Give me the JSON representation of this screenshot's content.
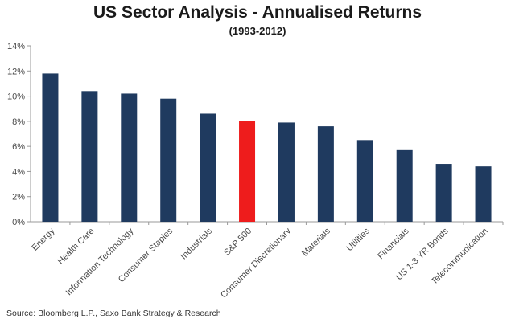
{
  "chart_data": {
    "type": "bar",
    "title": "US Sector Analysis - Annualised Returns",
    "subtitle": "(1993-2012)",
    "categories": [
      "Energy",
      "Health Care",
      "Information Technology",
      "Consumer Staples",
      "Industrials",
      "S&P 500",
      "Consumer Discretionary",
      "Materials",
      "Utilities",
      "Financials",
      "US 1-3 YR Bonds",
      "Telecommunication"
    ],
    "values": [
      11.8,
      10.4,
      10.2,
      9.8,
      8.6,
      8.0,
      7.9,
      7.6,
      6.5,
      5.7,
      4.6,
      4.4
    ],
    "highlight_category": "S&P 500",
    "ylim": [
      0,
      14
    ],
    "yticks": [
      0,
      2,
      4,
      6,
      8,
      10,
      12,
      14
    ],
    "ytick_labels": [
      "0%",
      "2%",
      "4%",
      "6%",
      "8%",
      "10%",
      "12%",
      "14%"
    ],
    "xlabel": "",
    "ylabel": "",
    "grid": false,
    "legend": "none",
    "colors": {
      "bar": "#1f3a5f",
      "highlight": "#ee1c1c",
      "axis": "#999999",
      "label": "#4a4a4a"
    }
  },
  "footer": {
    "source": "Source: Bloomberg L.P., Saxo Bank Strategy & Research"
  }
}
